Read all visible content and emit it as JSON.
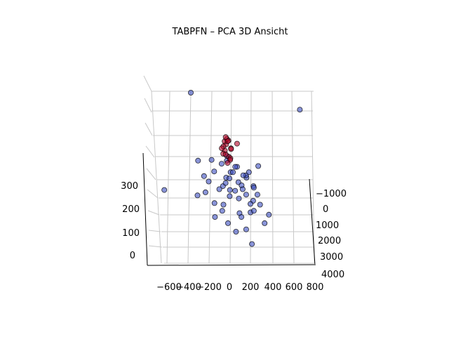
{
  "chart_data": {
    "type": "scatter",
    "title": "TABPFN – PCA 3D Ansicht",
    "xlabel": "",
    "ylabel": "",
    "zlabel": "",
    "x_ticks": [
      "−600",
      "−400",
      "−200",
      "0",
      "200",
      "400",
      "600",
      "800"
    ],
    "y_ticks": [
      "−1000",
      "0",
      "1000",
      "2000",
      "3000",
      "4000"
    ],
    "z_ticks": [
      "0",
      "100",
      "200",
      "300"
    ],
    "xlim": [
      -700,
      850
    ],
    "ylim": [
      -1300,
      4200
    ],
    "zlim": [
      -30,
      400
    ],
    "grid": true,
    "colors": {
      "class_blue": "#3b4cc0",
      "class_red": "#b40426",
      "edge": "#000000",
      "grid": "#c8c8c8"
    },
    "series": [
      {
        "color": "#3b4cc0",
        "points": [
          [
            -640,
            0,
            180
          ],
          [
            -330,
            200,
            170
          ],
          [
            -260,
            300,
            190
          ],
          [
            -300,
            -100,
            300
          ],
          [
            -150,
            0,
            260
          ],
          [
            -180,
            400,
            150
          ],
          [
            -120,
            600,
            130
          ],
          [
            -80,
            200,
            210
          ],
          [
            -60,
            -200,
            280
          ],
          [
            -40,
            100,
            240
          ],
          [
            -20,
            300,
            200
          ],
          [
            0,
            0,
            230
          ],
          [
            20,
            -100,
            250
          ],
          [
            40,
            200,
            190
          ],
          [
            60,
            400,
            170
          ],
          [
            80,
            100,
            220
          ],
          [
            100,
            -300,
            260
          ],
          [
            120,
            0,
            200
          ],
          [
            140,
            300,
            180
          ],
          [
            160,
            100,
            240
          ],
          [
            180,
            -200,
            230
          ],
          [
            200,
            400,
            160
          ],
          [
            220,
            200,
            210
          ],
          [
            240,
            0,
            190
          ],
          [
            260,
            500,
            150
          ],
          [
            -10,
            900,
            60
          ],
          [
            130,
            1100,
            20
          ],
          [
            330,
            700,
            120
          ],
          [
            300,
            -200,
            270
          ],
          [
            -200,
            700,
            110
          ],
          [
            -100,
            500,
            150
          ],
          [
            50,
            600,
            120
          ],
          [
            150,
            700,
            130
          ],
          [
            -30,
            400,
            180
          ],
          [
            70,
            -150,
            270
          ],
          [
            110,
            250,
            200
          ],
          [
            -150,
            -300,
            290
          ],
          [
            10,
            -400,
            300
          ],
          [
            200,
            -100,
            250
          ],
          [
            -80,
            800,
            90
          ],
          [
            90,
            900,
            70
          ],
          [
            250,
            300,
            180
          ],
          [
            -250,
            0,
            240
          ],
          [
            30,
            50,
            260
          ],
          [
            170,
            450,
            150
          ],
          [
            -50,
            150,
            220
          ],
          [
            -5,
            -250,
            290
          ],
          [
            140,
            -50,
            240
          ],
          [
            -120,
            250,
            200
          ],
          [
            60,
            700,
            110
          ],
          [
            -280,
            -1200,
            520
          ],
          [
            800,
            -1300,
            440
          ],
          [
            280,
            800,
            90
          ],
          [
            -220,
            200,
            230
          ],
          [
            190,
            600,
            130
          ]
        ]
      },
      {
        "color": "#b40426",
        "points": [
          [
            -20,
            -300,
            330
          ],
          [
            0,
            -400,
            350
          ],
          [
            20,
            -350,
            370
          ],
          [
            -40,
            -250,
            320
          ],
          [
            40,
            -300,
            340
          ],
          [
            10,
            -200,
            310
          ],
          [
            -10,
            -450,
            360
          ],
          [
            30,
            -250,
            300
          ],
          [
            -30,
            -350,
            345
          ],
          [
            0,
            -300,
            380
          ],
          [
            20,
            -150,
            300
          ],
          [
            -20,
            -200,
            320
          ],
          [
            50,
            -400,
            330
          ],
          [
            -50,
            -300,
            340
          ],
          [
            5,
            -500,
            375
          ],
          [
            100,
            -300,
            360
          ],
          [
            -10,
            -100,
            290
          ],
          [
            15,
            -380,
            365
          ]
        ]
      }
    ]
  }
}
